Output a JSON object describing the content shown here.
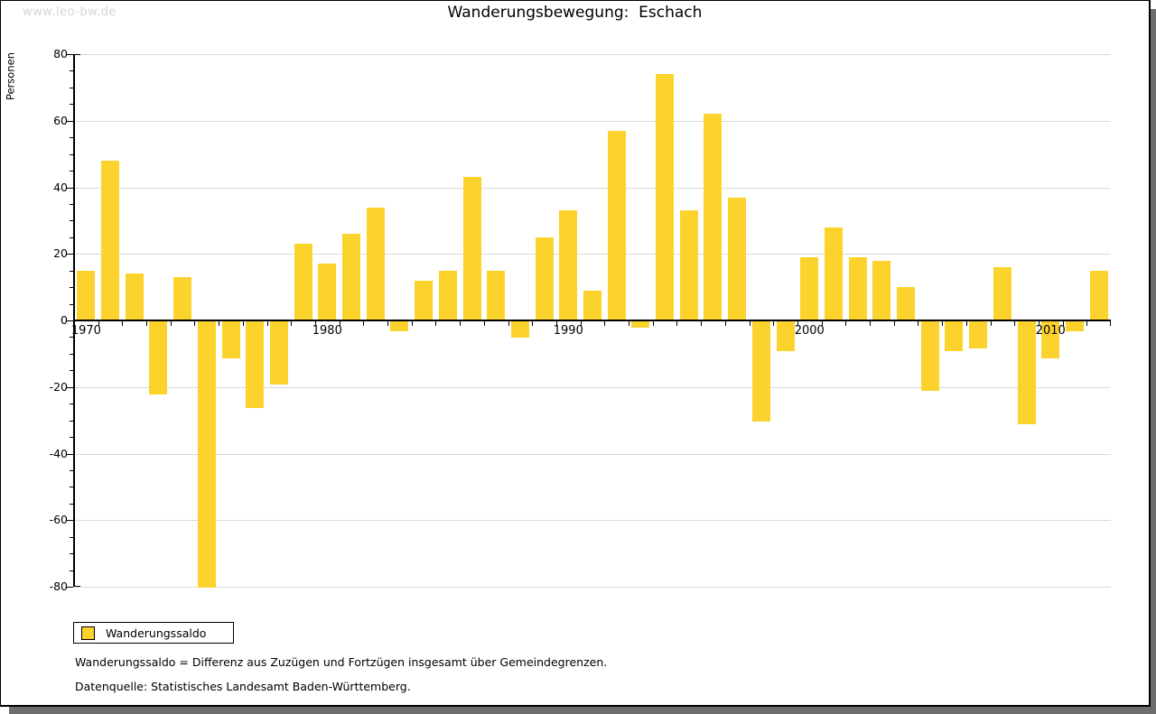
{
  "watermark": "www.leo-bw.de",
  "title": "Wanderungsbewegung:  Eschach",
  "legend": {
    "label": "Wanderungssaldo"
  },
  "footnotes": [
    "Wanderungssaldo = Differenz aus Zuzügen und Fortzügen insgesamt über Gemeindegrenzen.",
    "Datenquelle: Statistisches Landesamt Baden-Württemberg."
  ],
  "chart_data": {
    "type": "bar",
    "title": "Wanderungsbewegung: Eschach",
    "xlabel": "",
    "ylabel": "Personen",
    "series_name": "Wanderungssaldo",
    "bar_color": "#fcd32d",
    "grid": "horizontal",
    "legend_position": "bottom-left",
    "ylim": [
      -80,
      80
    ],
    "y_major_step": 20,
    "y_minor_step": 5,
    "x_tick_labels": [
      "1970",
      "1980",
      "1990",
      "2000",
      "2010"
    ],
    "years": [
      1970,
      1971,
      1972,
      1973,
      1974,
      1975,
      1976,
      1977,
      1978,
      1979,
      1980,
      1981,
      1982,
      1983,
      1984,
      1985,
      1986,
      1987,
      1988,
      1989,
      1990,
      1991,
      1992,
      1993,
      1994,
      1995,
      1996,
      1997,
      1998,
      1999,
      2000,
      2001,
      2002,
      2003,
      2004,
      2005,
      2006,
      2007,
      2008,
      2009,
      2010,
      2011,
      2012
    ],
    "values": [
      15,
      48,
      14,
      -22,
      13,
      -80,
      -11,
      -26,
      -19,
      23,
      17,
      26,
      34,
      -3,
      12,
      15,
      43,
      15,
      -5,
      25,
      33,
      9,
      57,
      -2,
      74,
      33,
      62,
      37,
      -30,
      -9,
      19,
      28,
      19,
      18,
      10,
      -21,
      -9,
      -8,
      16,
      -31,
      -11,
      -3,
      15
    ]
  }
}
